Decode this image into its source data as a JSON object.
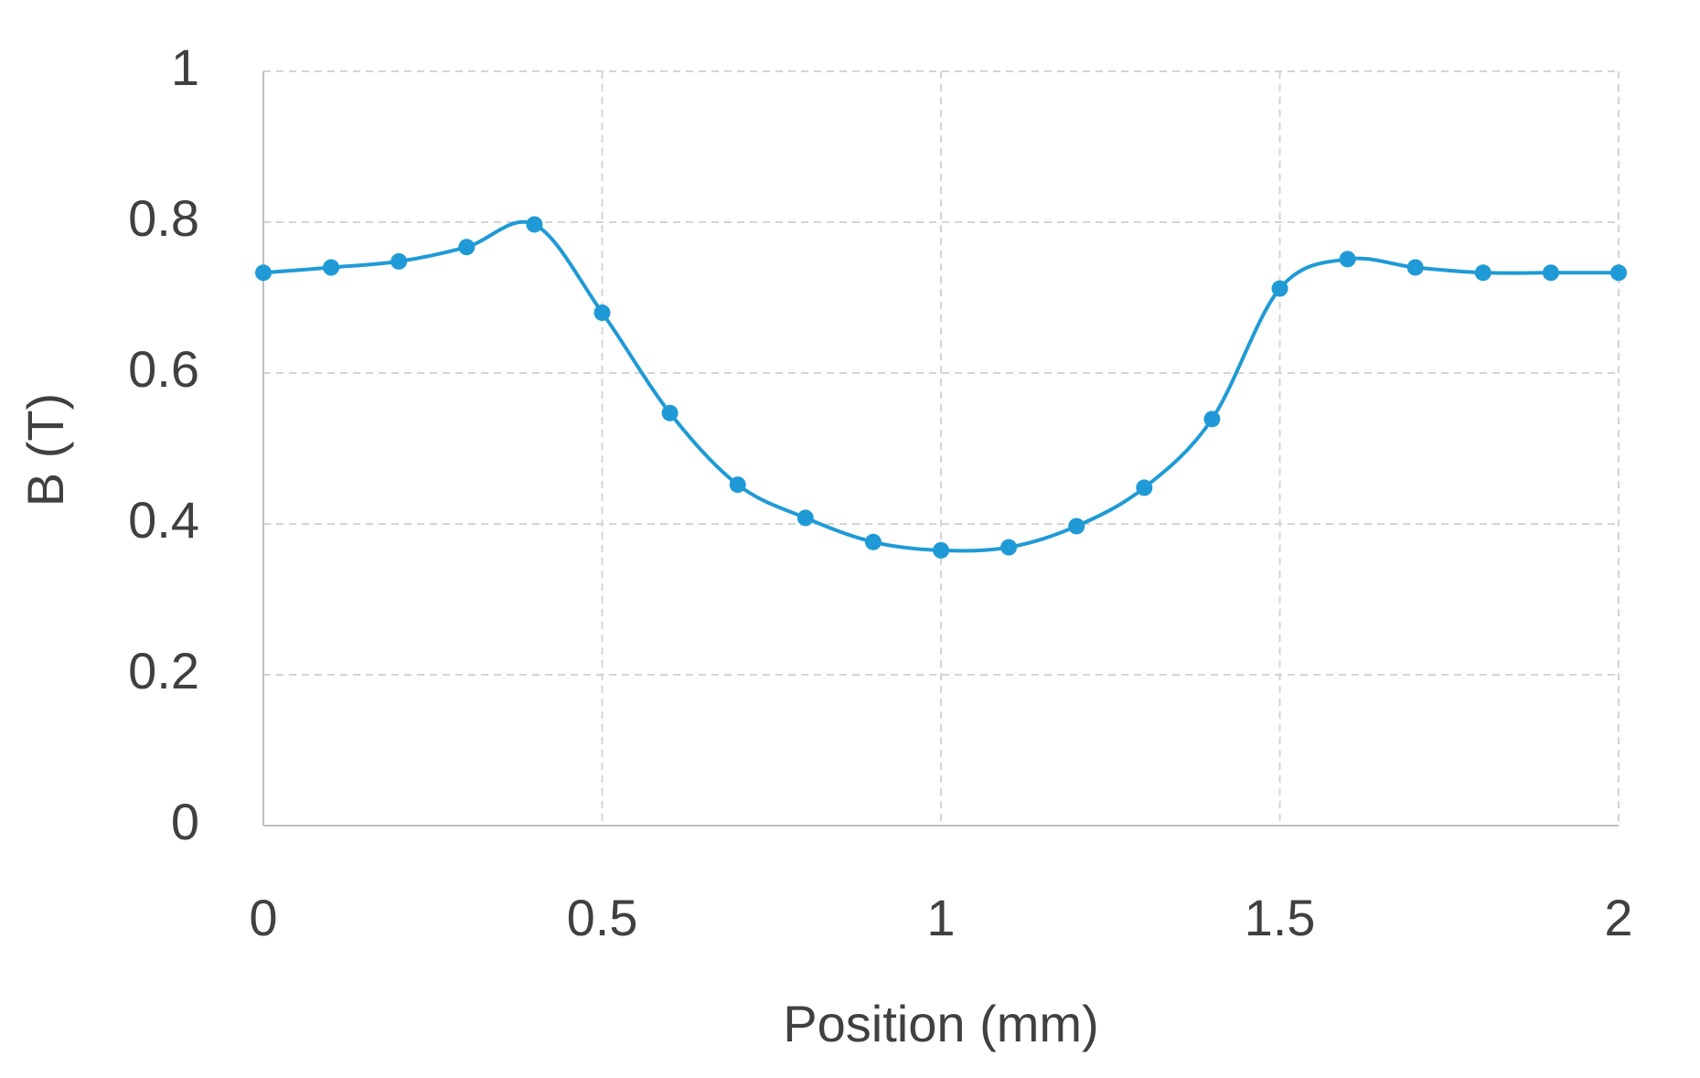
{
  "chart_data": {
    "type": "line",
    "x_label": "Position (mm)",
    "y_label": "B (T)",
    "x": [
      0,
      0.1,
      0.2,
      0.3,
      0.4,
      0.5,
      0.6,
      0.7,
      0.8,
      0.9,
      1.0,
      1.1,
      1.2,
      1.3,
      1.4,
      1.5,
      1.6,
      1.7,
      1.8,
      1.9,
      2.0
    ],
    "series": [
      {
        "name": "B",
        "color": "#1f9ad6",
        "values": [
          0.733,
          0.74,
          0.748,
          0.767,
          0.797,
          0.68,
          0.547,
          0.452,
          0.408,
          0.376,
          0.365,
          0.369,
          0.397,
          0.448,
          0.539,
          0.712,
          0.751,
          0.74,
          0.733,
          0.733,
          0.733
        ]
      }
    ],
    "xlim": [
      0,
      2
    ],
    "xticks": [
      0,
      0.5,
      1,
      1.5,
      2
    ],
    "ylim": [
      0,
      1
    ],
    "yticks": [
      0,
      0.2,
      0.4,
      0.6,
      0.8,
      1
    ],
    "grid": true,
    "smooth": true
  }
}
